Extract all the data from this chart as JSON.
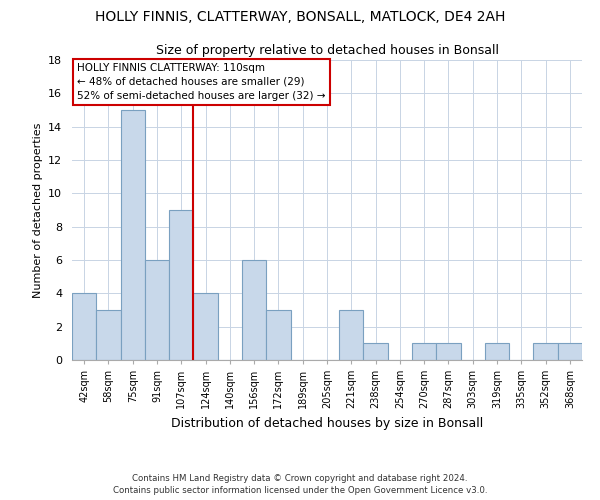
{
  "title": "HOLLY FINNIS, CLATTERWAY, BONSALL, MATLOCK, DE4 2AH",
  "subtitle": "Size of property relative to detached houses in Bonsall",
  "xlabel": "Distribution of detached houses by size in Bonsall",
  "ylabel": "Number of detached properties",
  "bar_fill_color": "#c8d8ea",
  "bar_edge_color": "#7aa0c0",
  "categories": [
    "42sqm",
    "58sqm",
    "75sqm",
    "91sqm",
    "107sqm",
    "124sqm",
    "140sqm",
    "156sqm",
    "172sqm",
    "189sqm",
    "205sqm",
    "221sqm",
    "238sqm",
    "254sqm",
    "270sqm",
    "287sqm",
    "303sqm",
    "319sqm",
    "335sqm",
    "352sqm",
    "368sqm"
  ],
  "values": [
    4,
    3,
    15,
    6,
    9,
    4,
    0,
    6,
    3,
    0,
    0,
    3,
    1,
    0,
    1,
    1,
    0,
    1,
    0,
    1,
    1
  ],
  "ylim": [
    0,
    18
  ],
  "yticks": [
    0,
    2,
    4,
    6,
    8,
    10,
    12,
    14,
    16,
    18
  ],
  "annotation_line1": "HOLLY FINNIS CLATTERWAY: 110sqm",
  "annotation_line2": "← 48% of detached houses are smaller (29)",
  "annotation_line3": "52% of semi-detached houses are larger (32) →",
  "footer_line1": "Contains HM Land Registry data © Crown copyright and database right 2024.",
  "footer_line2": "Contains public sector information licensed under the Open Government Licence v3.0.",
  "annotation_box_color": "#ffffff",
  "annotation_box_edge": "#cc0000",
  "red_line_color": "#cc0000",
  "background_color": "#ffffff",
  "grid_color": "#c8d4e4"
}
